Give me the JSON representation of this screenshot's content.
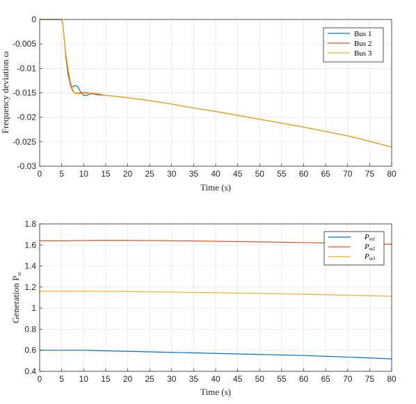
{
  "chart_data": [
    {
      "type": "line",
      "xlabel": "Time (s)",
      "ylabel": "Frequency deviation ω",
      "xlim": [
        0,
        80
      ],
      "ylim": [
        -0.03,
        0
      ],
      "xticks": [
        0,
        5,
        10,
        15,
        20,
        25,
        30,
        35,
        40,
        45,
        50,
        55,
        60,
        65,
        70,
        75,
        80
      ],
      "xtick_labels": [
        "0",
        "5",
        "10",
        "15",
        "20",
        "25",
        "30",
        "35",
        "40",
        "45",
        "50",
        "55",
        "60",
        "65",
        "70",
        "75",
        "80"
      ],
      "yticks": [
        0,
        -0.005,
        -0.01,
        -0.015,
        -0.02,
        -0.025,
        -0.03
      ],
      "ytick_labels": [
        "0",
        "-0.005",
        "-0.01",
        "-0.015",
        "-0.02",
        "-0.025",
        "-0.03"
      ],
      "grid": true,
      "legend_position": "top-right",
      "series": [
        {
          "name": "Bus 1",
          "color": "#0072BD",
          "x": [
            0,
            5,
            5.2,
            5.6,
            6,
            6.5,
            7,
            7.5,
            8,
            8.5,
            9,
            9.5,
            10,
            10.5,
            11,
            11.5,
            12,
            13,
            15,
            20,
            25,
            30,
            35,
            40,
            45,
            50,
            55,
            60,
            65,
            70,
            75,
            80
          ],
          "y": [
            0,
            0,
            -0.0005,
            -0.004,
            -0.008,
            -0.0115,
            -0.0132,
            -0.0138,
            -0.0135,
            -0.0136,
            -0.0143,
            -0.0151,
            -0.0155,
            -0.0156,
            -0.0154,
            -0.0152,
            -0.0152,
            -0.0154,
            -0.0155,
            -0.016,
            -0.0166,
            -0.0173,
            -0.0181,
            -0.0188,
            -0.0196,
            -0.0204,
            -0.0212,
            -0.022,
            -0.0229,
            -0.0238,
            -0.0249,
            -0.0261
          ]
        },
        {
          "name": "Bus 2",
          "color": "#D95319",
          "x": [
            0,
            5,
            5.2,
            5.6,
            6,
            6.5,
            7,
            7.5,
            8,
            8.5,
            9,
            10,
            11,
            12,
            13,
            15,
            20,
            25,
            30,
            35,
            40,
            45,
            50,
            55,
            60,
            65,
            70,
            75,
            80
          ],
          "y": [
            0,
            0,
            -0.0005,
            -0.004,
            -0.008,
            -0.011,
            -0.0135,
            -0.0146,
            -0.015,
            -0.0151,
            -0.015,
            -0.0149,
            -0.015,
            -0.0152,
            -0.0153,
            -0.0155,
            -0.016,
            -0.0166,
            -0.0173,
            -0.0181,
            -0.0188,
            -0.0196,
            -0.0204,
            -0.0212,
            -0.022,
            -0.0229,
            -0.0238,
            -0.0249,
            -0.0261
          ]
        },
        {
          "name": "Bus 3",
          "color": "#EDB120",
          "x": [
            0,
            5,
            5.2,
            5.6,
            6,
            6.5,
            7,
            7.5,
            8,
            8.5,
            9,
            10,
            11,
            12,
            13,
            15,
            20,
            25,
            30,
            35,
            40,
            45,
            50,
            55,
            60,
            65,
            70,
            75,
            80
          ],
          "y": [
            0,
            0,
            -0.0008,
            -0.004,
            -0.0072,
            -0.0102,
            -0.0127,
            -0.0143,
            -0.0151,
            -0.0152,
            -0.0152,
            -0.0152,
            -0.0151,
            -0.015,
            -0.0151,
            -0.0155,
            -0.016,
            -0.0166,
            -0.0173,
            -0.0181,
            -0.0188,
            -0.0196,
            -0.0204,
            -0.0212,
            -0.022,
            -0.0229,
            -0.0238,
            -0.0249,
            -0.0261
          ]
        }
      ]
    },
    {
      "type": "line",
      "xlabel": "Time (s)",
      "ylabel_main": "Generation P",
      "ylabel_sub": "m",
      "xlim": [
        0,
        80
      ],
      "ylim": [
        0.4,
        1.8
      ],
      "xticks": [
        0,
        5,
        10,
        15,
        20,
        25,
        30,
        35,
        40,
        45,
        50,
        55,
        60,
        65,
        70,
        75,
        80
      ],
      "xtick_labels": [
        "0",
        "5",
        "10",
        "15",
        "20",
        "25",
        "30",
        "35",
        "40",
        "45",
        "50",
        "55",
        "60",
        "65",
        "70",
        "75",
        "80"
      ],
      "yticks": [
        0.4,
        0.6,
        0.8,
        1,
        1.2,
        1.4,
        1.6,
        1.8
      ],
      "ytick_labels": [
        "0.4",
        "0.6",
        "0.8",
        "1",
        "1.2",
        "1.4",
        "1.6",
        "1.8"
      ],
      "grid": true,
      "legend_position": "top-right",
      "series": [
        {
          "name_main": "P",
          "name_sub": "m1",
          "color": "#0072BD",
          "x": [
            0,
            5,
            10,
            15,
            20,
            25,
            30,
            35,
            40,
            45,
            50,
            55,
            60,
            65,
            70,
            75,
            80
          ],
          "y": [
            0.6,
            0.6,
            0.6,
            0.595,
            0.59,
            0.585,
            0.58,
            0.575,
            0.57,
            0.565,
            0.56,
            0.555,
            0.55,
            0.543,
            0.535,
            0.527,
            0.518
          ]
        },
        {
          "name_main": "P",
          "name_sub": "m2",
          "color": "#D95319",
          "x": [
            0,
            5,
            10,
            15,
            20,
            25,
            30,
            35,
            40,
            45,
            50,
            55,
            60,
            65,
            70,
            75,
            80
          ],
          "y": [
            1.64,
            1.64,
            1.642,
            1.643,
            1.643,
            1.642,
            1.64,
            1.638,
            1.635,
            1.632,
            1.629,
            1.626,
            1.622,
            1.619,
            1.615,
            1.611,
            1.606
          ]
        },
        {
          "name_main": "P",
          "name_sub": "m3",
          "color": "#EDB120",
          "x": [
            0,
            5,
            10,
            15,
            20,
            25,
            30,
            35,
            40,
            45,
            50,
            55,
            60,
            65,
            70,
            75,
            80
          ],
          "y": [
            1.16,
            1.16,
            1.16,
            1.159,
            1.157,
            1.155,
            1.153,
            1.15,
            1.147,
            1.143,
            1.14,
            1.136,
            1.132,
            1.127,
            1.123,
            1.118,
            1.112
          ]
        }
      ]
    }
  ]
}
